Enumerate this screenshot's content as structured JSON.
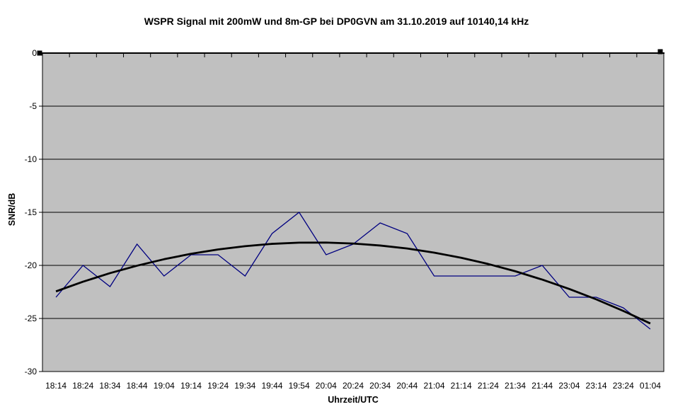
{
  "title": "WSPR Signal mit 200mW und 8m-GP bei DP0GVN am 31.10.2019 auf 10140,14 kHz",
  "chart_data": {
    "type": "line",
    "title": "WSPR Signal mit 200mW und 8m-GP bei DP0GVN am 31.10.2019 auf 10140,14 kHz",
    "xlabel": "Uhrzeit/UTC",
    "ylabel": "SNR/dB",
    "ylim": [
      -30,
      0
    ],
    "yticks": [
      0,
      -5,
      -10,
      -15,
      -20,
      -25,
      -30
    ],
    "grid": true,
    "legend_position": "none",
    "plot_background": "#c0c0c0",
    "categories": [
      "18:14",
      "18:24",
      "18:34",
      "18:44",
      "19:04",
      "19:14",
      "19:24",
      "19:34",
      "19:44",
      "19:54",
      "20:04",
      "20:24",
      "20:34",
      "20:44",
      "21:04",
      "21:14",
      "21:24",
      "21:34",
      "21:44",
      "23:04",
      "23:14",
      "23:24",
      "01:04"
    ],
    "series": [
      {
        "name": "SNR",
        "color": "#000080",
        "values": [
          -23,
          -20,
          -22,
          -18,
          -21,
          -19,
          -19,
          -21,
          -17,
          -15,
          -19,
          -18,
          -16,
          -17,
          -21,
          -21,
          -21,
          -21,
          -20,
          -23,
          -23,
          -24,
          -26
        ]
      }
    ],
    "trendline": {
      "name": "polynomial-trendline-order-2",
      "type": "polynomial",
      "order": 2,
      "color": "#000000",
      "values": [
        -22.45,
        -21.54,
        -20.73,
        -20.03,
        -19.42,
        -18.91,
        -18.5,
        -18.19,
        -17.97,
        -17.86,
        -17.85,
        -17.94,
        -18.13,
        -18.41,
        -18.8,
        -19.28,
        -19.87,
        -20.55,
        -21.34,
        -22.22,
        -23.2,
        -24.29,
        -25.47
      ]
    }
  },
  "colors": {
    "axis": "#000000",
    "gridline": "#000000",
    "selection_handle": "#000000",
    "outer_background": "#ffffff"
  }
}
